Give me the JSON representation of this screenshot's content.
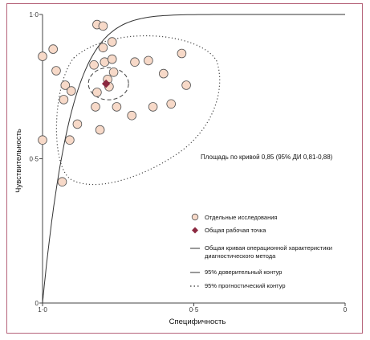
{
  "chart_data": {
    "type": "scatter",
    "xlabel": "Специфичность",
    "ylabel": "Чувствительность",
    "x_reversed": true,
    "xlim": [
      1.0,
      0.0
    ],
    "ylim": [
      0.0,
      1.0
    ],
    "xticks": [
      "1·0",
      "0·5",
      "0"
    ],
    "yticks": [
      "0",
      "0·5",
      "1·0"
    ],
    "annotation": "Площадь по кривой 0,85 (95% ДИ 0,81-0,88)",
    "legend": [
      {
        "key": "studies",
        "label": "Отдельные исследования"
      },
      {
        "key": "summary_point",
        "label": "Общая рабочая точка"
      },
      {
        "key": "sroc",
        "label": "Общая кривая операционной характеристики диагностического метода"
      },
      {
        "key": "confidence",
        "label": "95% доверительный контур"
      },
      {
        "key": "prediction",
        "label": "95% прогностический контур"
      }
    ],
    "summary_point": {
      "x": 0.79,
      "y": 0.76
    },
    "studies": [
      {
        "x": 1.0,
        "y": 0.855
      },
      {
        "x": 1.0,
        "y": 0.565
      },
      {
        "x": 0.965,
        "y": 0.88
      },
      {
        "x": 0.955,
        "y": 0.805
      },
      {
        "x": 0.935,
        "y": 0.42
      },
      {
        "x": 0.93,
        "y": 0.705
      },
      {
        "x": 0.925,
        "y": 0.755
      },
      {
        "x": 0.91,
        "y": 0.565
      },
      {
        "x": 0.905,
        "y": 0.735
      },
      {
        "x": 0.885,
        "y": 0.62
      },
      {
        "x": 0.83,
        "y": 0.825
      },
      {
        "x": 0.825,
        "y": 0.68
      },
      {
        "x": 0.82,
        "y": 0.73
      },
      {
        "x": 0.82,
        "y": 0.965
      },
      {
        "x": 0.81,
        "y": 0.6
      },
      {
        "x": 0.8,
        "y": 0.96
      },
      {
        "x": 0.8,
        "y": 0.885
      },
      {
        "x": 0.795,
        "y": 0.835
      },
      {
        "x": 0.785,
        "y": 0.775
      },
      {
        "x": 0.78,
        "y": 0.75
      },
      {
        "x": 0.77,
        "y": 0.845
      },
      {
        "x": 0.77,
        "y": 0.905
      },
      {
        "x": 0.765,
        "y": 0.8
      },
      {
        "x": 0.755,
        "y": 0.68
      },
      {
        "x": 0.705,
        "y": 0.65
      },
      {
        "x": 0.695,
        "y": 0.835
      },
      {
        "x": 0.65,
        "y": 0.84
      },
      {
        "x": 0.635,
        "y": 0.68
      },
      {
        "x": 0.6,
        "y": 0.795
      },
      {
        "x": 0.575,
        "y": 0.69
      },
      {
        "x": 0.54,
        "y": 0.865
      },
      {
        "x": 0.525,
        "y": 0.755
      }
    ],
    "colors": {
      "frame": "#b5637a",
      "study_fill": "#f7d9c8",
      "study_stroke": "#555555",
      "summary": "#8b2840",
      "curve": "#333333"
    }
  }
}
